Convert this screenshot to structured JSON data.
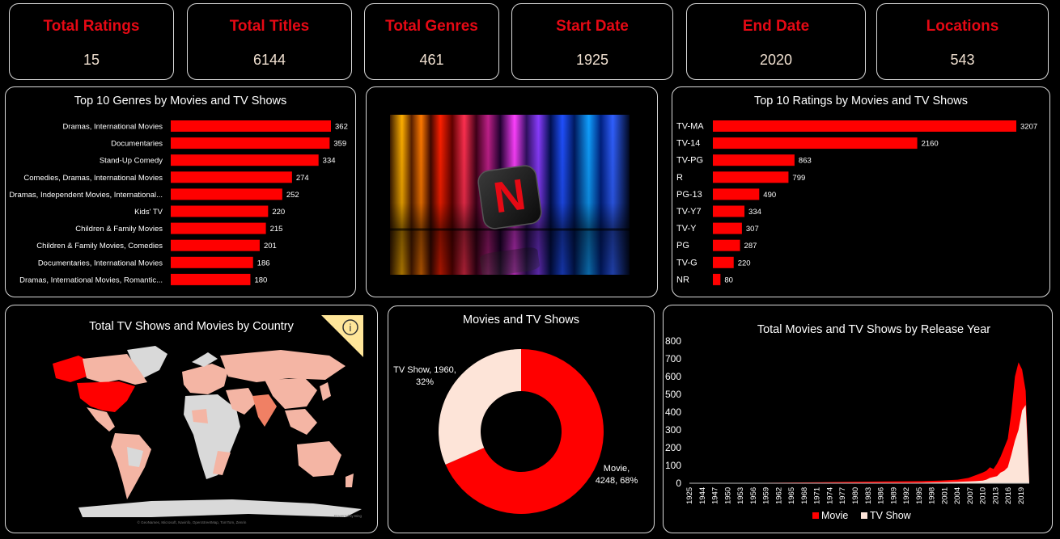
{
  "kpis": [
    {
      "label": "Total Ratings",
      "value": "15"
    },
    {
      "label": "Total Titles",
      "value": "6144"
    },
    {
      "label": "Total Genres",
      "value": "461"
    },
    {
      "label": "Start Date",
      "value": "1925"
    },
    {
      "label": "End Date",
      "value": "2020"
    },
    {
      "label": "Locations",
      "value": "543"
    }
  ],
  "colors": {
    "accent": "#e50914",
    "bar": "#ff0000",
    "tv": "#fde4d8",
    "map_light": "#f4b5a4",
    "map_mid": "#f08064",
    "land": "#d9d9d9"
  },
  "logo": {
    "letter": "N"
  },
  "map_info_icon": "info-icon",
  "chart_data": [
    {
      "type": "bar",
      "orientation": "horizontal",
      "title": "Top 10 Genres by Movies and TV Shows",
      "categories": [
        "Dramas, International Movies",
        "Documentaries",
        "Stand-Up Comedy",
        "Comedies, Dramas, International Movies",
        "Dramas, Independent Movies, International...",
        "Kids' TV",
        "Children & Family Movies",
        "Children & Family Movies, Comedies",
        "Documentaries, International Movies",
        "Dramas, International Movies, Romantic..."
      ],
      "values": [
        362,
        359,
        334,
        274,
        252,
        220,
        215,
        201,
        186,
        180
      ],
      "xlim": [
        0,
        362
      ]
    },
    {
      "type": "bar",
      "orientation": "horizontal",
      "title": "Top 10 Ratings by Movies and TV Shows",
      "categories": [
        "TV-MA",
        "TV-14",
        "TV-PG",
        "R",
        "PG-13",
        "TV-Y7",
        "TV-Y",
        "PG",
        "TV-G",
        "NR"
      ],
      "values": [
        3207,
        2160,
        863,
        799,
        490,
        334,
        307,
        287,
        220,
        80
      ],
      "xlim": [
        0,
        3207
      ]
    },
    {
      "type": "map",
      "title": "Total TV Shows and Movies by Country",
      "highlighted": [
        {
          "name": "United States",
          "level": "high"
        },
        {
          "name": "Alaska",
          "level": "high"
        },
        {
          "name": "India",
          "level": "mid"
        }
      ],
      "attribution": "© GeoNames, Microsoft, Navinfo, OpenStreetMap, TomTom, Zenrin",
      "powered_by": "Powered by Bing"
    },
    {
      "type": "pie",
      "donut": true,
      "title": "Movies and TV Shows",
      "slices": [
        {
          "name": "Movie",
          "value": 4248,
          "percent": "68%",
          "label_line1": "Movie,",
          "label_line2": "4248, 68%"
        },
        {
          "name": "TV Show",
          "value": 1960,
          "percent": "32%",
          "label_line1": "TV Show, 1960,",
          "label_line2": "32%"
        }
      ]
    },
    {
      "type": "area",
      "stacked": false,
      "title": "Total Movies and TV Shows by Release Year",
      "x_tick_labels": [
        "1925",
        "1944",
        "1947",
        "1950",
        "1953",
        "1956",
        "1959",
        "1962",
        "1965",
        "1968",
        "1971",
        "1974",
        "1977",
        "1980",
        "1983",
        "1986",
        "1989",
        "1992",
        "1995",
        "1998",
        "2001",
        "2004",
        "2007",
        "2010",
        "2013",
        "2016",
        "2019"
      ],
      "ylim": [
        0,
        800
      ],
      "y_ticks": [
        0,
        100,
        200,
        300,
        400,
        500,
        600,
        700,
        800
      ],
      "series": [
        {
          "name": "Movie",
          "x": [
            1925,
            1945,
            1960,
            1970,
            1980,
            1990,
            1995,
            2000,
            2003,
            2005,
            2007,
            2008,
            2009,
            2010,
            2011,
            2012,
            2013,
            2014,
            2015,
            2016,
            2017,
            2018,
            2019,
            2020
          ],
          "values": [
            0,
            2,
            5,
            8,
            10,
            12,
            15,
            20,
            30,
            45,
            60,
            70,
            90,
            80,
            110,
            150,
            200,
            250,
            400,
            600,
            680,
            640,
            520,
            0
          ]
        },
        {
          "name": "TV Show",
          "x": [
            1925,
            1960,
            1980,
            1990,
            1995,
            2000,
            2003,
            2005,
            2007,
            2008,
            2009,
            2010,
            2011,
            2012,
            2013,
            2014,
            2015,
            2016,
            2017,
            2018,
            2019,
            2020
          ],
          "values": [
            0,
            0,
            1,
            3,
            5,
            8,
            10,
            12,
            15,
            20,
            30,
            35,
            40,
            60,
            70,
            90,
            160,
            240,
            300,
            410,
            440,
            0
          ]
        }
      ],
      "legend": "bottom"
    }
  ]
}
